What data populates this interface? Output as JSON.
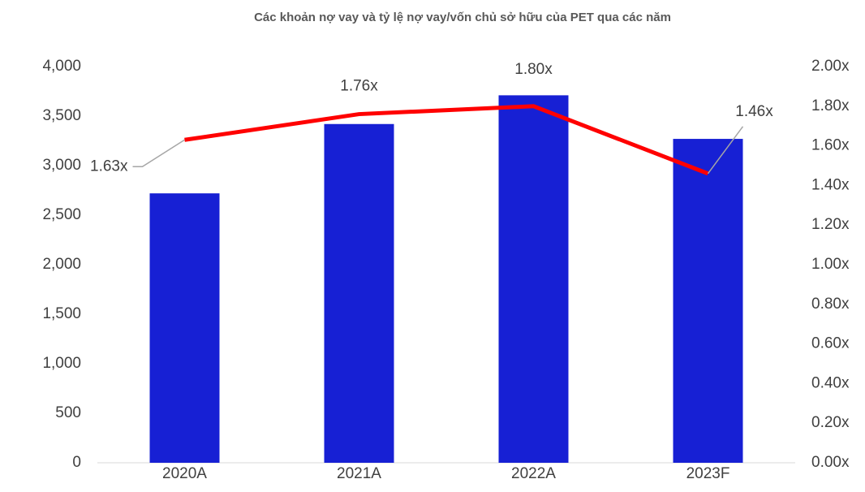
{
  "chart_data": {
    "type": "bar-line",
    "title": "Các khoản nợ vay và tỷ lệ nợ vay/vốn chủ sở hữu của PET qua các năm",
    "categories": [
      "2020A",
      "2021A",
      "2022A",
      "2023F"
    ],
    "series": [
      {
        "type": "bar",
        "color": "#1720d4",
        "values": [
          2720,
          3420,
          3710,
          3270
        ]
      },
      {
        "type": "line",
        "axis": "y2",
        "color": "#ff0000",
        "values": [
          1.63,
          1.76,
          1.8,
          1.46
        ],
        "value_labels": [
          "1.63x",
          "1.76x",
          "1.80x",
          "1.46x"
        ]
      }
    ],
    "ylim": [
      0,
      4000
    ],
    "yticks": [
      0,
      500,
      {
        "value": 1000,
        "label": "1,000"
      },
      {
        "value": 1500,
        "label": "1,500"
      },
      {
        "value": 2000,
        "label": "2,000"
      },
      {
        "value": 2500,
        "label": "2,500"
      },
      {
        "value": 3000,
        "label": "3,000"
      },
      {
        "value": 3500,
        "label": "3,500"
      },
      {
        "value": 4000,
        "label": "4,000"
      }
    ],
    "y2lim": [
      0,
      2
    ],
    "y2ticks": [
      {
        "value": 0,
        "label": "0.00x"
      },
      {
        "value": 0.2,
        "label": "0.20x"
      },
      {
        "value": 0.4,
        "label": "0.40x"
      },
      {
        "value": 0.6,
        "label": "0.60x"
      },
      {
        "value": 0.8,
        "label": "0.80x"
      },
      {
        "value": 1,
        "label": "1.00x"
      },
      {
        "value": 1.2,
        "label": "1.20x"
      },
      {
        "value": 1.4,
        "label": "1.40x"
      },
      {
        "value": 1.6,
        "label": "1.60x"
      },
      {
        "value": 1.8,
        "label": "1.80x"
      },
      {
        "value": 2,
        "label": "2.00x"
      }
    ]
  }
}
